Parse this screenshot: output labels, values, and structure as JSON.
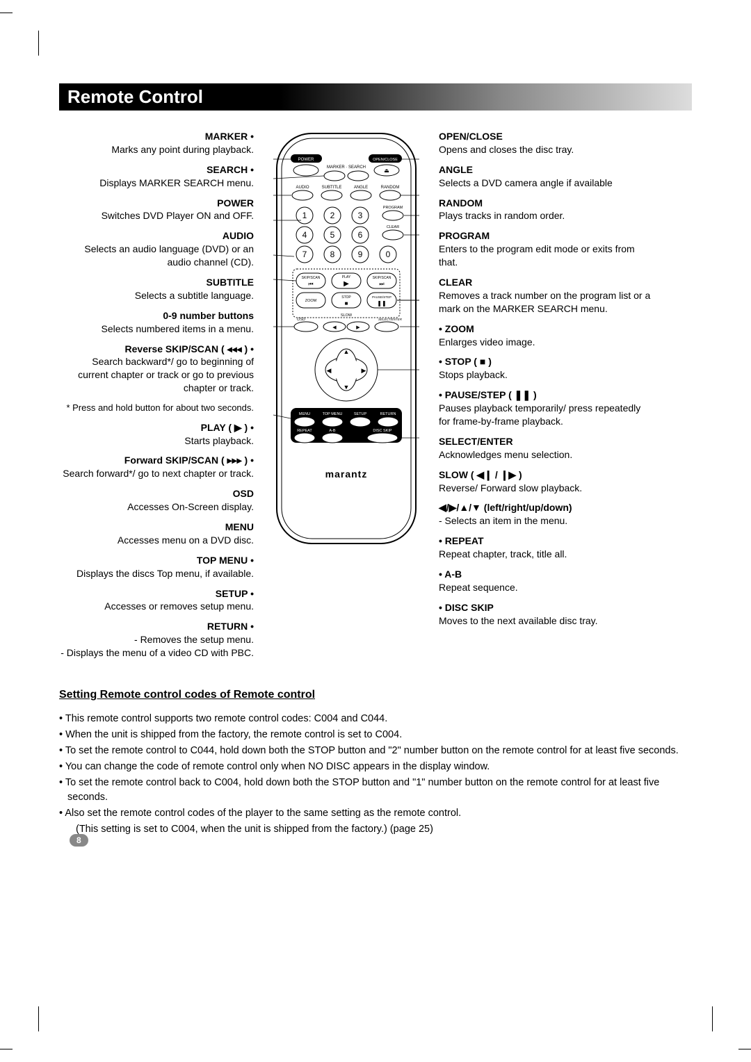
{
  "title": "Remote Control",
  "page_number": "8",
  "remote": {
    "brand": "marantz",
    "top_labels": {
      "power": "POWER",
      "openclose": "OPEN/CLOSE",
      "marker_search": "MARKER · SEARCH"
    },
    "row2_labels": {
      "audio": "AUDIO",
      "subtitle": "SUBTITLE",
      "angle": "ANGLE",
      "random": "RANDOM"
    },
    "side_labels": {
      "program": "PROGRAM",
      "clear": "CLEAR"
    },
    "numbers": [
      "1",
      "2",
      "3",
      "4",
      "5",
      "6",
      "7",
      "8",
      "9",
      "0"
    ],
    "transport": {
      "skipscan_l": "SKIP/SCAN",
      "play": "PLAY",
      "skipscan_r": "SKIP/SCAN",
      "zoom": "ZOOM",
      "stop": "STOP",
      "pausestep": "PAUSE/STEP",
      "osd": "OSD",
      "slow": "SLOW",
      "selectenter": "SELECT/ENTER"
    },
    "bottom_row1": {
      "menu": "MENU",
      "topmenu": "TOP MENU",
      "setup": "SETUP",
      "return": "RETURN"
    },
    "bottom_row2": {
      "repeat": "REPEAT",
      "ab": "A-B",
      "discskip": "DISC SKIP"
    }
  },
  "left": [
    {
      "head": "MARKER •",
      "desc": "Marks any point during playback."
    },
    {
      "head": "SEARCH •",
      "desc": "Displays MARKER SEARCH menu."
    },
    {
      "head": "POWER",
      "desc": "Switches DVD Player ON and OFF."
    },
    {
      "head": "AUDIO",
      "desc": "Selects an audio language (DVD) or an audio channel (CD)."
    },
    {
      "head": "SUBTITLE",
      "desc": "Selects a subtitle language."
    },
    {
      "head": "0-9 number buttons",
      "desc": "Selects numbered items in a menu."
    },
    {
      "head": "Reverse SKIP/SCAN ( ◂◂◂ ) •",
      "desc": "Search backward*/ go to beginning of current chapter or track or go to previous chapter or track."
    },
    {
      "head": "",
      "desc": "* Press and hold button for about two seconds."
    },
    {
      "head": "PLAY ( ▶ ) •",
      "desc": "Starts playback."
    },
    {
      "head": "Forward SKIP/SCAN ( ▸▸▸ ) •",
      "desc": "Search forward*/ go to next chapter or track."
    },
    {
      "head": "OSD",
      "desc": "Accesses On-Screen display."
    },
    {
      "head": "MENU",
      "desc": "Accesses menu on a DVD disc."
    },
    {
      "head": "TOP MENU •",
      "desc": "Displays the discs Top menu, if available."
    },
    {
      "head": "SETUP •",
      "desc": "Accesses or removes setup menu."
    },
    {
      "head": "RETURN •",
      "desc": "- Removes the setup menu.\n- Displays the menu of a video CD with PBC."
    }
  ],
  "right": [
    {
      "head": "OPEN/CLOSE",
      "desc": "Opens and closes the disc tray."
    },
    {
      "head": "ANGLE",
      "desc": "Selects a DVD camera angle if available"
    },
    {
      "head": "RANDOM",
      "desc": "Plays tracks in random order."
    },
    {
      "head": "PROGRAM",
      "desc": "Enters to the program edit mode or exits from that."
    },
    {
      "head": "CLEAR",
      "desc": "Removes a track number on the program list or a mark on the MARKER SEARCH menu."
    },
    {
      "head": "• ZOOM",
      "desc": "Enlarges video image."
    },
    {
      "head": "• STOP ( ■ )",
      "desc": "Stops playback."
    },
    {
      "head": "• PAUSE/STEP ( ❚❚ )",
      "desc": "Pauses playback temporarily/ press repeatedly for frame-by-frame playback."
    },
    {
      "head": "SELECT/ENTER",
      "desc": "Acknowledges menu selection."
    },
    {
      "head": "SLOW ( ◀❙ / ❙▶ )",
      "desc": "Reverse/ Forward slow playback."
    },
    {
      "head": "◀/▶/▲/▼  (left/right/up/down)",
      "desc": "  - Selects an item in the menu."
    },
    {
      "head": "• REPEAT",
      "desc": "Repeat chapter, track, title all."
    },
    {
      "head": "• A-B",
      "desc": "Repeat sequence."
    },
    {
      "head": "• DISC SKIP",
      "desc": "Moves to the next available disc tray."
    }
  ],
  "setting": {
    "heading": "Setting Remote control codes of Remote control",
    "bullets": [
      "This remote control supports two remote control codes: C004 and C044.",
      "When the unit is shipped from the factory, the remote control is set to C004.",
      "To set the remote control to C044, hold down both the STOP button and \"2\" number button on the remote control for at least five seconds.",
      "You can change the code of remote control only when NO DISC appears in the display window.",
      "To set the remote control back to C004, hold down both the STOP button and \"1\" number button on the remote control for at least five seconds.",
      "Also set the remote control codes of the player to the same setting as the remote control."
    ],
    "tail": "(This setting is set to C004, when the unit is shipped from the factory.) (page 25)"
  }
}
